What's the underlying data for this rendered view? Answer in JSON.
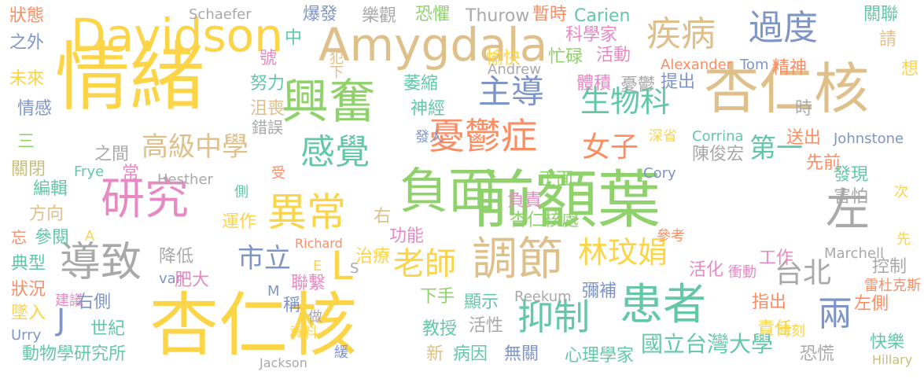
{
  "palette": {
    "yellow": "#fcd447",
    "tan": "#e0c08a",
    "green": "#8fd16a",
    "teal": "#63c8a7",
    "blue": "#7f95c8",
    "orange": "#fc8d62",
    "pink": "#e78ac3",
    "gray": "#a9a9a9",
    "khaki": "#c8be7d"
  },
  "words": [
    {
      "text": "情緒",
      "color": "yellow"
    },
    {
      "text": "杏仁核",
      "color": "yellow"
    },
    {
      "text": "杏仁核",
      "color": "tan"
    },
    {
      "text": "前額葉",
      "color": "green"
    },
    {
      "text": "Amygdala",
      "color": "tan"
    },
    {
      "text": "Davidson",
      "color": "yellow"
    },
    {
      "text": "興奮",
      "color": "green"
    },
    {
      "text": "負面",
      "color": "green"
    },
    {
      "text": "調節",
      "color": "tan"
    },
    {
      "text": "患者",
      "color": "teal"
    },
    {
      "text": "抑制",
      "color": "teal"
    },
    {
      "text": "研究",
      "color": "pink"
    },
    {
      "text": "導致",
      "color": "gray"
    },
    {
      "text": "異常",
      "color": "yellow"
    },
    {
      "text": "憂鬱症",
      "color": "orange"
    },
    {
      "text": "主導",
      "color": "blue"
    },
    {
      "text": "過度",
      "color": "blue"
    },
    {
      "text": "疾病",
      "color": "tan"
    },
    {
      "text": "左",
      "color": "gray"
    },
    {
      "text": "感覺",
      "color": "teal"
    },
    {
      "text": "生物科",
      "color": "teal"
    },
    {
      "text": "高級中學",
      "color": "tan"
    },
    {
      "text": "女子",
      "color": "orange"
    },
    {
      "text": "老師",
      "color": "yellow"
    },
    {
      "text": "林玟娟",
      "color": "yellow"
    },
    {
      "text": "市立",
      "color": "blue"
    },
    {
      "text": "台北",
      "color": "gray"
    },
    {
      "text": "兩",
      "color": "blue"
    },
    {
      "text": "國立台灣大學",
      "color": "teal"
    },
    {
      "text": "第一",
      "color": "teal"
    },
    {
      "text": "L",
      "color": "yellow"
    },
    {
      "text": "J",
      "color": "blue"
    },
    {
      "text": "狀態",
      "color": "orange"
    },
    {
      "text": "之外",
      "color": "blue"
    },
    {
      "text": "未來",
      "color": "yellow"
    },
    {
      "text": "情感",
      "color": "blue"
    },
    {
      "text": "三",
      "color": "green"
    },
    {
      "text": "關閉",
      "color": "khaki"
    },
    {
      "text": "編輯",
      "color": "teal"
    },
    {
      "text": "方向",
      "color": "tan"
    },
    {
      "text": "忘",
      "color": "orange"
    },
    {
      "text": "參閱",
      "color": "teal"
    },
    {
      "text": "典型",
      "color": "teal"
    },
    {
      "text": "狀況",
      "color": "orange"
    },
    {
      "text": "建議",
      "color": "pink"
    },
    {
      "text": "墜入",
      "color": "yellow"
    },
    {
      "text": "Urry",
      "color": "blue"
    },
    {
      "text": "動物學研究所",
      "color": "teal"
    },
    {
      "text": "Schaefer",
      "color": "gray"
    },
    {
      "text": "爆發",
      "color": "blue"
    },
    {
      "text": "樂觀",
      "color": "gray"
    },
    {
      "text": "恐懼",
      "color": "green"
    },
    {
      "text": "Thurow",
      "color": "gray"
    },
    {
      "text": "暫時",
      "color": "orange"
    },
    {
      "text": "Carien",
      "color": "teal"
    },
    {
      "text": "關聯",
      "color": "teal"
    },
    {
      "text": "請",
      "color": "tan"
    },
    {
      "text": "想",
      "color": "yellow"
    },
    {
      "text": "科學家",
      "color": "pink"
    },
    {
      "text": "中",
      "color": "teal"
    },
    {
      "text": "號",
      "color": "pink"
    },
    {
      "text": "犯下",
      "color": "tan"
    },
    {
      "text": "忙碌",
      "color": "green"
    },
    {
      "text": "活動",
      "color": "pink"
    },
    {
      "text": "愉快",
      "color": "yellow"
    },
    {
      "text": "Andrew",
      "color": "gray"
    },
    {
      "text": "Alexander",
      "color": "orange"
    },
    {
      "text": "Tom",
      "color": "blue"
    },
    {
      "text": "精神",
      "color": "orange"
    },
    {
      "text": "努力",
      "color": "teal"
    },
    {
      "text": "萎縮",
      "color": "teal"
    },
    {
      "text": "體積",
      "color": "pink"
    },
    {
      "text": "憂鬱",
      "color": "gray"
    },
    {
      "text": "提出",
      "color": "blue"
    },
    {
      "text": "沮喪",
      "color": "tan"
    },
    {
      "text": "神經",
      "color": "teal"
    },
    {
      "text": "時",
      "color": "gray"
    },
    {
      "text": "錯誤",
      "color": "gray"
    },
    {
      "text": "發人",
      "color": "blue"
    },
    {
      "text": "深省",
      "color": "yellow"
    },
    {
      "text": "Corrina",
      "color": "teal"
    },
    {
      "text": "送出",
      "color": "orange"
    },
    {
      "text": "Johnstone",
      "color": "blue"
    },
    {
      "text": "之間",
      "color": "gray"
    },
    {
      "text": "陳俊宏",
      "color": "gray"
    },
    {
      "text": "先前",
      "color": "orange"
    },
    {
      "text": "發現",
      "color": "teal"
    },
    {
      "text": "Frye",
      "color": "teal"
    },
    {
      "text": "常",
      "color": "pink"
    },
    {
      "text": "受",
      "color": "orange"
    },
    {
      "text": "Hesther",
      "color": "gray"
    },
    {
      "text": "正面",
      "color": "green"
    },
    {
      "text": "Cory",
      "color": "blue"
    },
    {
      "text": "害怕",
      "color": "gray"
    },
    {
      "text": "側",
      "color": "teal"
    },
    {
      "text": "次",
      "color": "yellow"
    },
    {
      "text": "負責",
      "color": "pink"
    },
    {
      "text": "運作",
      "color": "yellow"
    },
    {
      "text": "右",
      "color": "tan"
    },
    {
      "text": "杏仁核處",
      "color": "green"
    },
    {
      "text": "A",
      "color": "yellow"
    },
    {
      "text": "參考",
      "color": "orange"
    },
    {
      "text": "先",
      "color": "yellow"
    },
    {
      "text": "功能",
      "color": "pink"
    },
    {
      "text": "Richard",
      "color": "orange"
    },
    {
      "text": "降低",
      "color": "gray"
    },
    {
      "text": "治療",
      "color": "yellow"
    },
    {
      "text": "工作",
      "color": "pink"
    },
    {
      "text": "Marchell",
      "color": "gray"
    },
    {
      "text": "控制",
      "color": "gray"
    },
    {
      "text": "E",
      "color": "yellow"
    },
    {
      "text": "S",
      "color": "gray"
    },
    {
      "text": "活化",
      "color": "pink"
    },
    {
      "text": "衝動",
      "color": "pink"
    },
    {
      "text": "van",
      "color": "blue"
    },
    {
      "text": "肥大",
      "color": "pink"
    },
    {
      "text": "雷杜克斯",
      "color": "orange"
    },
    {
      "text": "M",
      "color": "blue"
    },
    {
      "text": "聯繫",
      "color": "pink"
    },
    {
      "text": "下手",
      "color": "green"
    },
    {
      "text": "Reekum",
      "color": "gray"
    },
    {
      "text": "彌補",
      "color": "blue"
    },
    {
      "text": "指出",
      "color": "orange"
    },
    {
      "text": "右側",
      "color": "blue"
    },
    {
      "text": "稱",
      "color": "blue"
    },
    {
      "text": "顯示",
      "color": "teal"
    },
    {
      "text": "左側",
      "color": "orange"
    },
    {
      "text": "世紀",
      "color": "teal"
    },
    {
      "text": "做",
      "color": "gray"
    },
    {
      "text": "活性",
      "color": "gray"
    },
    {
      "text": "責任",
      "color": "yellow"
    },
    {
      "text": "時刻",
      "color": "yellow"
    },
    {
      "text": "資料",
      "color": "yellow"
    },
    {
      "text": "教授",
      "color": "teal"
    },
    {
      "text": "快樂",
      "color": "teal"
    },
    {
      "text": "新",
      "color": "tan"
    },
    {
      "text": "病因",
      "color": "teal"
    },
    {
      "text": "緩",
      "color": "blue"
    },
    {
      "text": "Jackson",
      "color": "gray"
    },
    {
      "text": "無關",
      "color": "blue"
    },
    {
      "text": "心理學家",
      "color": "teal"
    },
    {
      "text": "恐慌",
      "color": "gray"
    },
    {
      "text": "Hillary",
      "color": "khaki"
    }
  ]
}
